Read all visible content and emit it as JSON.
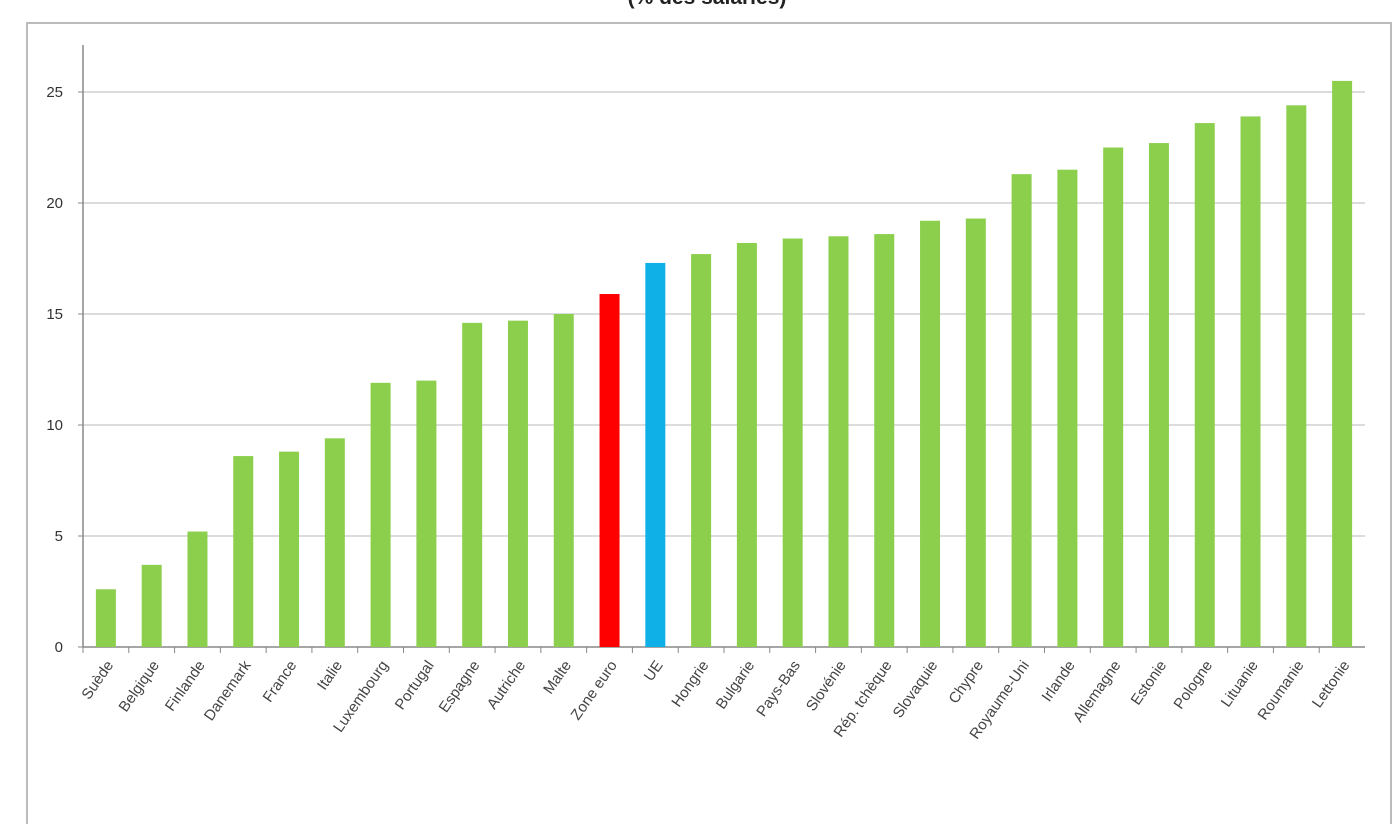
{
  "chart_data": {
    "type": "bar",
    "title": "(% des salariés)",
    "xlabel": "",
    "ylabel": "",
    "ylim": [
      0,
      26
    ],
    "yticks": [
      0,
      5,
      10,
      15,
      20,
      25
    ],
    "grid": true,
    "categories": [
      "Suède",
      "Belgique",
      "Finlande",
      "Danemark",
      "France",
      "Italie",
      "Luxembourg",
      "Portugal",
      "Espagne",
      "Autriche",
      "Malte",
      "Zone euro",
      "UE",
      "Hongrie",
      "Bulgarie",
      "Pays-Bas",
      "Slovénie",
      "Rép. tchèque",
      "Slovaquie",
      "Chypre",
      "Royaume-Uni",
      "Irlande",
      "Allemagne",
      "Estonie",
      "Pologne",
      "Lituanie",
      "Roumanie",
      "Lettonie"
    ],
    "values": [
      2.6,
      3.7,
      5.2,
      8.6,
      8.8,
      9.4,
      11.9,
      12.0,
      14.6,
      14.7,
      15.0,
      15.9,
      17.3,
      17.7,
      18.2,
      18.4,
      18.5,
      18.6,
      19.2,
      19.3,
      21.3,
      21.5,
      22.5,
      22.7,
      23.6,
      23.9,
      24.4,
      25.5
    ],
    "colors": {
      "default": "#8ccf4d",
      "Zone euro": "#ff0000",
      "UE": "#0fb0e8"
    }
  }
}
